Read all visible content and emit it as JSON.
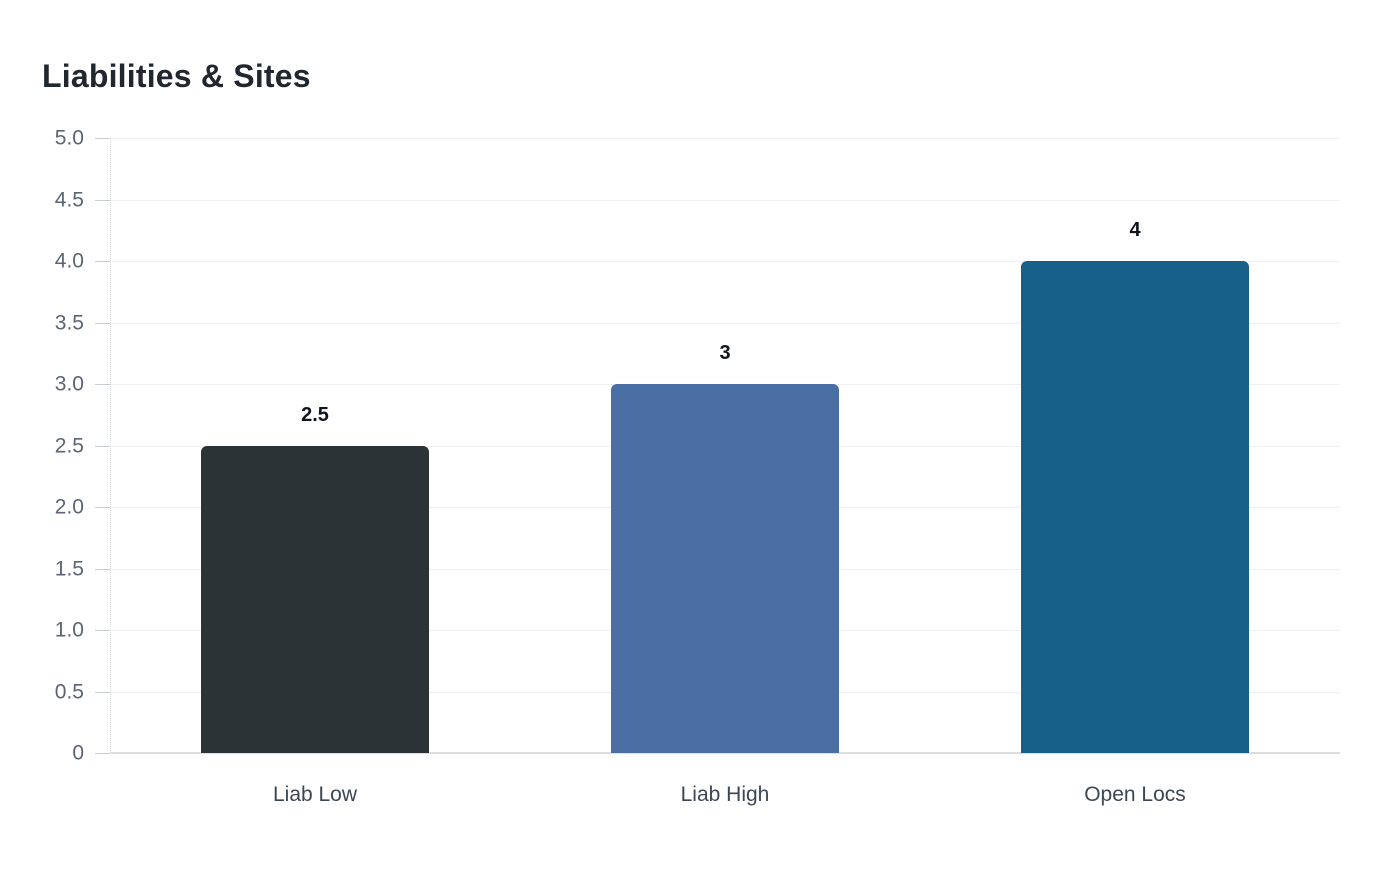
{
  "page": {
    "background": "#ffffff"
  },
  "chart_data": {
    "type": "bar",
    "title": "Liabilities & Sites",
    "categories": [
      "Liab Low",
      "Liab High",
      "Open Locs"
    ],
    "values": [
      2.5,
      3,
      4
    ],
    "value_labels": [
      "2.5",
      "3",
      "4"
    ],
    "bar_colors": [
      "#2c3336",
      "#4a6fa5",
      "#166089"
    ],
    "xlabel": "",
    "ylabel": "",
    "ylim": [
      0,
      5
    ],
    "y_tick_step": 0.5,
    "y_ticks": [
      {
        "value": 5.0,
        "label": "5.0"
      },
      {
        "value": 4.5,
        "label": "4.5"
      },
      {
        "value": 4.0,
        "label": "4.0"
      },
      {
        "value": 3.5,
        "label": "3.5"
      },
      {
        "value": 3.0,
        "label": "3.0"
      },
      {
        "value": 2.5,
        "label": "2.5"
      },
      {
        "value": 2.0,
        "label": "2.0"
      },
      {
        "value": 1.5,
        "label": "1.5"
      },
      {
        "value": 1.0,
        "label": "1.0"
      },
      {
        "value": 0.5,
        "label": "0.5"
      },
      {
        "value": 0,
        "label": "0"
      }
    ],
    "grid": "horizontal",
    "legend": "none",
    "colors": {
      "title": "#21272e",
      "tick_label": "#5b6573",
      "category_label": "#3d4754",
      "value_label": "#0f151b",
      "gridline": "#f0f0f2",
      "baseline": "#dcdee1",
      "tick_mark": "#c9ccd0",
      "axis_dotted": "#d6d9dc",
      "background": "#ffffff"
    }
  }
}
